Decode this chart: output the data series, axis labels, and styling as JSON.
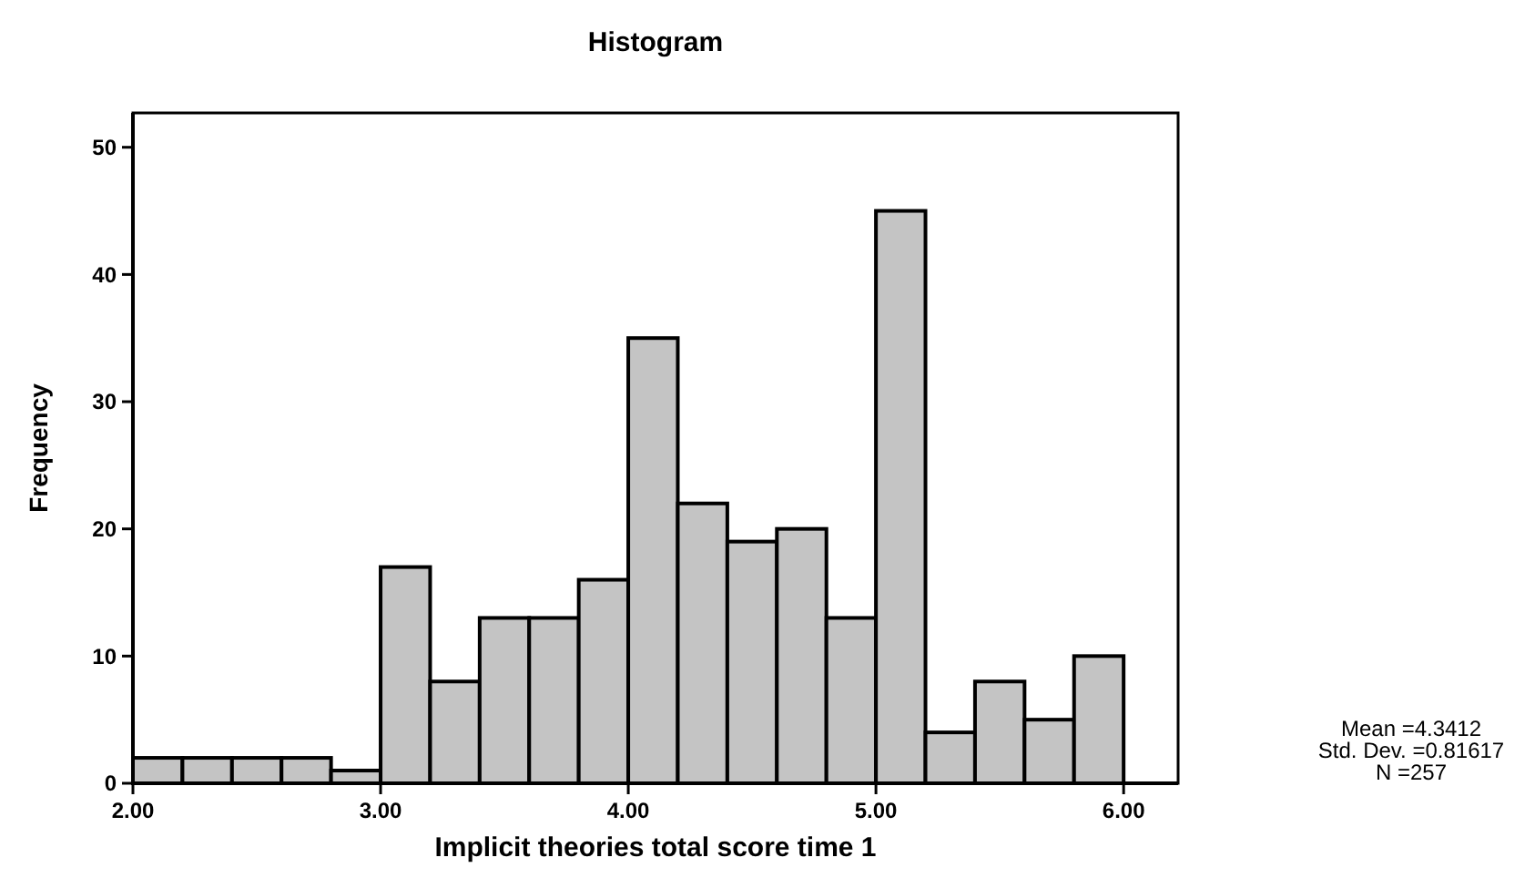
{
  "chart_data": {
    "type": "histogram",
    "title": "Histogram",
    "xlabel": "Implicit theories total score time 1",
    "ylabel": "Frequency",
    "bins": [
      2.0,
      2.2,
      2.4,
      2.6,
      2.8,
      3.0,
      3.2,
      3.4,
      3.6,
      3.8,
      4.0,
      4.2,
      4.4,
      4.6,
      4.8,
      5.0,
      5.2,
      5.4,
      5.6,
      5.8,
      6.0
    ],
    "values": [
      2,
      2,
      2,
      2,
      1,
      17,
      8,
      13,
      13,
      16,
      35,
      22,
      19,
      20,
      13,
      45,
      4,
      8,
      5,
      10
    ],
    "color": "#c4c4c4",
    "xlim": [
      2.0,
      6.22
    ],
    "xticks": [
      {
        "value": 2,
        "label": "2.00"
      },
      {
        "value": 3,
        "label": "3.00"
      },
      {
        "value": 4,
        "label": "4.00"
      },
      {
        "value": 5,
        "label": "5.00"
      },
      {
        "value": 6,
        "label": "6.00"
      }
    ],
    "ylim": [
      0,
      52.7
    ],
    "yticks": [
      0,
      10,
      20,
      30,
      40,
      50
    ],
    "annotations": [
      "Mean =4.3412",
      "Std. Dev. =0.81617",
      "N =257"
    ]
  }
}
